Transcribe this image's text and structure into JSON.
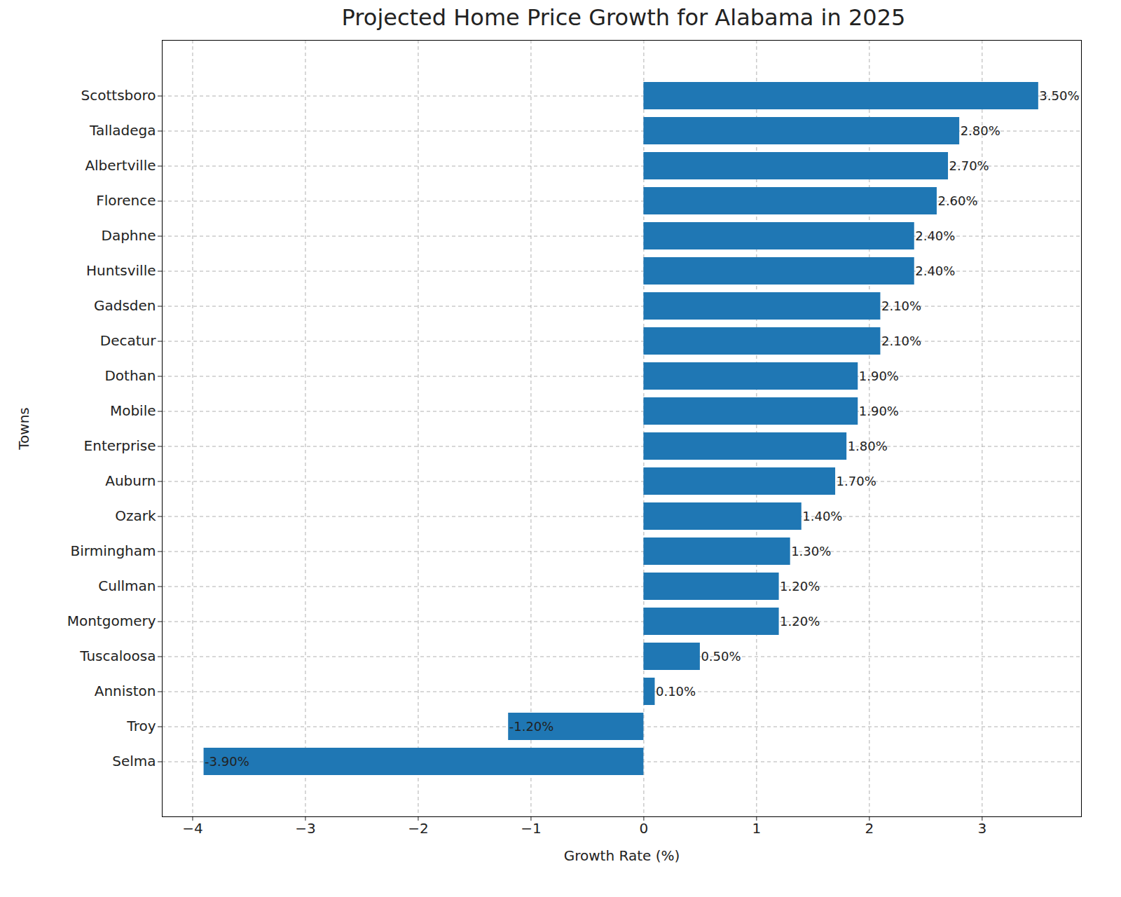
{
  "chart_data": {
    "type": "bar",
    "orientation": "horizontal",
    "title": "Projected Home Price Growth for Alabama in 2025",
    "x_label": "Growth Rate (%)",
    "y_label": "Towns",
    "categories": [
      "Scottsboro",
      "Talladega",
      "Albertville",
      "Florence",
      "Daphne",
      "Huntsville",
      "Gadsden",
      "Decatur",
      "Dothan",
      "Mobile",
      "Enterprise",
      "Auburn",
      "Ozark",
      "Birmingham",
      "Cullman",
      "Montgomery",
      "Tuscaloosa",
      "Anniston",
      "Troy",
      "Selma"
    ],
    "values": [
      3.5,
      2.8,
      2.7,
      2.6,
      2.4,
      2.4,
      2.1,
      2.1,
      1.9,
      1.9,
      1.8,
      1.7,
      1.4,
      1.3,
      1.2,
      1.2,
      0.5,
      0.1,
      -1.2,
      -3.9
    ],
    "value_labels": [
      "3.50%",
      "2.80%",
      "2.70%",
      "2.60%",
      "2.40%",
      "2.40%",
      "2.10%",
      "2.10%",
      "1.90%",
      "1.90%",
      "1.80%",
      "1.70%",
      "1.40%",
      "1.30%",
      "1.20%",
      "1.20%",
      "0.50%",
      "0.10%",
      "-1.20%",
      "-3.90%"
    ],
    "data_labels": true,
    "color": "#1f77b4",
    "xlim": [
      -4.27,
      3.88
    ],
    "xticks": [
      -4,
      -3,
      -2,
      -1,
      0,
      1,
      2,
      3
    ],
    "grid": true
  }
}
